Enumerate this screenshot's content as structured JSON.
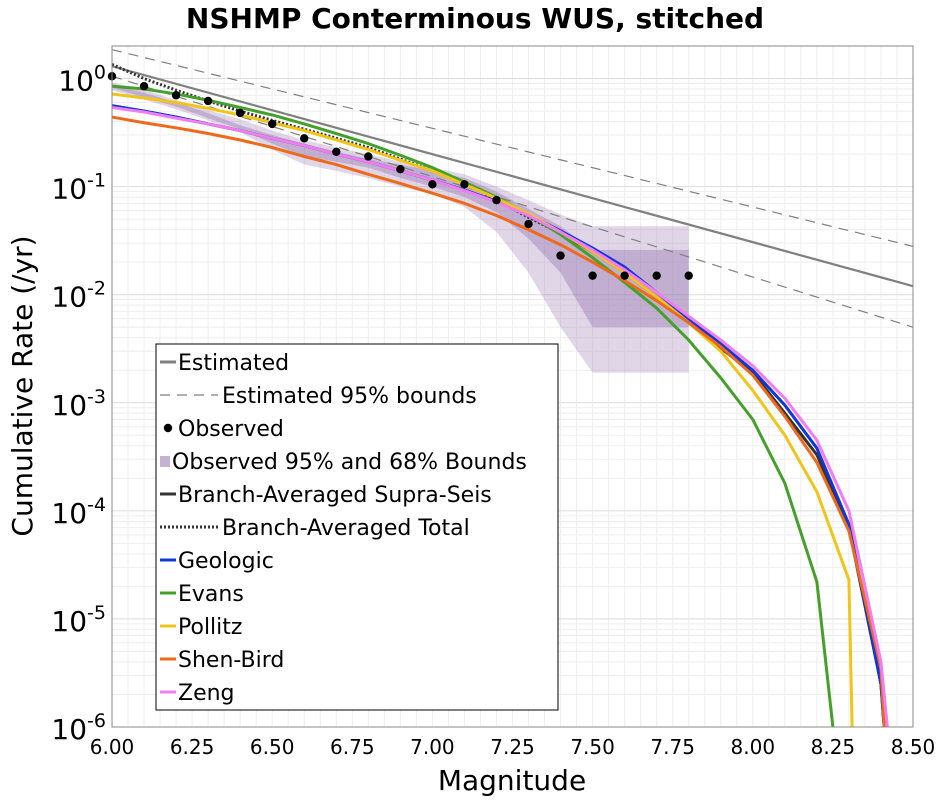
{
  "chart_data": {
    "type": "line",
    "title": "NSHMP Conterminous WUS, stitched",
    "xlabel": "Magnitude",
    "ylabel": "Cumulative Rate (/yr)",
    "xlim": [
      6.0,
      8.5
    ],
    "ylim": [
      1e-06,
      2
    ],
    "yscale": "log",
    "grid": true,
    "legend_position": "lower-left",
    "x_ticks": [
      "6.00",
      "6.25",
      "6.50",
      "6.75",
      "7.00",
      "7.25",
      "7.50",
      "7.75",
      "8.00",
      "8.25",
      "8.50"
    ],
    "y_ticks": [
      {
        "base": "10",
        "exp": "0",
        "value": 1
      },
      {
        "base": "10",
        "exp": "-1",
        "value": 0.1
      },
      {
        "base": "10",
        "exp": "-2",
        "value": 0.01
      },
      {
        "base": "10",
        "exp": "-3",
        "value": 0.001
      },
      {
        "base": "10",
        "exp": "-4",
        "value": 0.0001
      },
      {
        "base": "10",
        "exp": "-5",
        "value": 1e-05
      },
      {
        "base": "10",
        "exp": "-6",
        "value": 1e-06
      }
    ],
    "bounds": {
      "name": "Observed 95% and 68% Bounds",
      "color": "#9e7fb3",
      "outer_upper": [
        [
          6.0,
          0.92
        ],
        [
          6.1,
          0.79
        ],
        [
          6.2,
          0.63
        ],
        [
          6.3,
          0.51
        ],
        [
          6.4,
          0.42
        ],
        [
          6.5,
          0.33
        ],
        [
          6.6,
          0.27
        ],
        [
          6.7,
          0.23
        ],
        [
          6.8,
          0.2
        ],
        [
          6.9,
          0.17
        ],
        [
          7.0,
          0.15
        ],
        [
          7.1,
          0.13
        ],
        [
          7.2,
          0.1
        ],
        [
          7.3,
          0.075
        ],
        [
          7.4,
          0.055
        ],
        [
          7.5,
          0.043
        ],
        [
          7.6,
          0.043
        ],
        [
          7.7,
          0.043
        ],
        [
          7.8,
          0.043
        ]
      ],
      "outer_lower": [
        [
          6.0,
          0.78
        ],
        [
          6.1,
          0.64
        ],
        [
          6.2,
          0.52
        ],
        [
          6.3,
          0.41
        ],
        [
          6.4,
          0.32
        ],
        [
          6.5,
          0.22
        ],
        [
          6.6,
          0.16
        ],
        [
          6.7,
          0.14
        ],
        [
          6.8,
          0.12
        ],
        [
          6.9,
          0.1
        ],
        [
          7.0,
          0.085
        ],
        [
          7.1,
          0.065
        ],
        [
          7.2,
          0.038
        ],
        [
          7.3,
          0.016
        ],
        [
          7.4,
          0.005
        ],
        [
          7.5,
          0.0019
        ],
        [
          7.6,
          0.0019
        ],
        [
          7.7,
          0.0019
        ],
        [
          7.8,
          0.0019
        ]
      ],
      "inner_upper": [
        [
          6.0,
          0.88
        ],
        [
          6.1,
          0.74
        ],
        [
          6.2,
          0.6
        ],
        [
          6.3,
          0.48
        ],
        [
          6.4,
          0.37
        ],
        [
          6.5,
          0.3
        ],
        [
          6.6,
          0.25
        ],
        [
          6.7,
          0.21
        ],
        [
          6.8,
          0.18
        ],
        [
          6.9,
          0.16
        ],
        [
          7.0,
          0.14
        ],
        [
          7.1,
          0.12
        ],
        [
          7.2,
          0.09
        ],
        [
          7.3,
          0.062
        ],
        [
          7.4,
          0.043
        ],
        [
          7.5,
          0.026
        ],
        [
          7.6,
          0.026
        ],
        [
          7.7,
          0.026
        ],
        [
          7.8,
          0.026
        ]
      ],
      "inner_lower": [
        [
          6.0,
          0.82
        ],
        [
          6.1,
          0.67
        ],
        [
          6.2,
          0.55
        ],
        [
          6.3,
          0.43
        ],
        [
          6.4,
          0.34
        ],
        [
          6.5,
          0.25
        ],
        [
          6.6,
          0.19
        ],
        [
          6.7,
          0.17
        ],
        [
          6.8,
          0.15
        ],
        [
          6.9,
          0.12
        ],
        [
          7.0,
          0.1
        ],
        [
          7.1,
          0.08
        ],
        [
          7.2,
          0.058
        ],
        [
          7.3,
          0.033
        ],
        [
          7.4,
          0.016
        ],
        [
          7.5,
          0.005
        ],
        [
          7.6,
          0.005
        ],
        [
          7.7,
          0.005
        ],
        [
          7.8,
          0.005
        ]
      ]
    },
    "series": [
      {
        "name": "Estimated",
        "color": "#808080",
        "style": "solid",
        "width": 2.2,
        "points": [
          [
            6.0,
            1.3
          ],
          [
            8.5,
            0.012
          ]
        ]
      },
      {
        "name": "Estimated 95% bounds",
        "color": "#808080",
        "style": "dashed",
        "width": 1.2,
        "points": [
          [
            6.0,
            1.85
          ],
          [
            8.5,
            0.028
          ]
        ]
      },
      {
        "name": "",
        "color": "#808080",
        "style": "dashed",
        "width": 1.2,
        "points": [
          [
            6.0,
            1.05
          ],
          [
            8.5,
            0.005
          ]
        ]
      },
      {
        "name": "Branch-Averaged Supra-Seis",
        "color": "#333333",
        "style": "solid",
        "width": 3,
        "points": [
          [
            6.0,
            0.56
          ],
          [
            6.1,
            0.5
          ],
          [
            6.2,
            0.44
          ],
          [
            6.3,
            0.38
          ],
          [
            6.4,
            0.33
          ],
          [
            6.5,
            0.28
          ],
          [
            6.6,
            0.24
          ],
          [
            6.7,
            0.2
          ],
          [
            6.8,
            0.17
          ],
          [
            6.9,
            0.14
          ],
          [
            7.0,
            0.115
          ],
          [
            7.1,
            0.093
          ],
          [
            7.2,
            0.073
          ],
          [
            7.3,
            0.054
          ],
          [
            7.4,
            0.037
          ],
          [
            7.5,
            0.025
          ],
          [
            7.6,
            0.016
          ],
          [
            7.7,
            0.0095
          ],
          [
            7.8,
            0.0055
          ],
          [
            7.9,
            0.0032
          ],
          [
            8.0,
            0.0019
          ],
          [
            8.1,
            0.0008
          ],
          [
            8.2,
            0.00033
          ],
          [
            8.3,
            7e-05
          ],
          [
            8.4,
            2.5e-06
          ],
          [
            8.41,
            1e-06
          ]
        ]
      },
      {
        "name": "Branch-Averaged Total",
        "color": "#333333",
        "style": "dotted",
        "width": 3,
        "points": [
          [
            6.0,
            1.35
          ],
          [
            6.1,
            1.0
          ],
          [
            6.2,
            0.78
          ],
          [
            6.3,
            0.62
          ],
          [
            6.4,
            0.5
          ],
          [
            6.5,
            0.41
          ],
          [
            6.6,
            0.34
          ],
          [
            6.7,
            0.28
          ],
          [
            6.8,
            0.23
          ],
          [
            6.9,
            0.18
          ],
          [
            7.0,
            0.14
          ],
          [
            7.1,
            0.11
          ],
          [
            7.2,
            0.075
          ],
          [
            7.3,
            0.052
          ],
          [
            7.4,
            0.037
          ],
          [
            7.5,
            0.025
          ],
          [
            7.6,
            0.017
          ]
        ]
      },
      {
        "name": "Geologic",
        "color": "#1136d9",
        "style": "solid",
        "width": 3,
        "points": [
          [
            6.0,
            0.56
          ],
          [
            6.1,
            0.5
          ],
          [
            6.2,
            0.44
          ],
          [
            6.3,
            0.38
          ],
          [
            6.4,
            0.33
          ],
          [
            6.5,
            0.28
          ],
          [
            6.6,
            0.24
          ],
          [
            6.7,
            0.2
          ],
          [
            6.8,
            0.17
          ],
          [
            6.9,
            0.14
          ],
          [
            7.0,
            0.115
          ],
          [
            7.1,
            0.093
          ],
          [
            7.2,
            0.073
          ],
          [
            7.3,
            0.055
          ],
          [
            7.4,
            0.039
          ],
          [
            7.5,
            0.027
          ],
          [
            7.6,
            0.018
          ],
          [
            7.7,
            0.0105
          ],
          [
            7.8,
            0.006
          ],
          [
            7.9,
            0.0035
          ],
          [
            8.0,
            0.002
          ],
          [
            8.1,
            0.00095
          ],
          [
            8.2,
            0.00038
          ],
          [
            8.3,
            7.5e-05
          ],
          [
            8.4,
            2.5e-06
          ],
          [
            8.41,
            1e-06
          ]
        ]
      },
      {
        "name": "Evans",
        "color": "#44a02b",
        "style": "solid",
        "width": 3,
        "points": [
          [
            6.0,
            0.85
          ],
          [
            6.1,
            0.8
          ],
          [
            6.2,
            0.72
          ],
          [
            6.3,
            0.63
          ],
          [
            6.4,
            0.54
          ],
          [
            6.5,
            0.46
          ],
          [
            6.6,
            0.38
          ],
          [
            6.7,
            0.31
          ],
          [
            6.8,
            0.25
          ],
          [
            6.9,
            0.195
          ],
          [
            7.0,
            0.15
          ],
          [
            7.1,
            0.11
          ],
          [
            7.2,
            0.08
          ],
          [
            7.3,
            0.055
          ],
          [
            7.4,
            0.036
          ],
          [
            7.5,
            0.022
          ],
          [
            7.6,
            0.013
          ],
          [
            7.7,
            0.0075
          ],
          [
            7.8,
            0.0038
          ],
          [
            7.9,
            0.0017
          ],
          [
            8.0,
            0.0007
          ],
          [
            8.1,
            0.00018
          ],
          [
            8.2,
            2.2e-05
          ],
          [
            8.25,
            1e-06
          ]
        ]
      },
      {
        "name": "Pollitz",
        "color": "#f0c419",
        "style": "solid",
        "width": 3,
        "points": [
          [
            6.0,
            0.72
          ],
          [
            6.1,
            0.66
          ],
          [
            6.2,
            0.6
          ],
          [
            6.3,
            0.53
          ],
          [
            6.4,
            0.46
          ],
          [
            6.5,
            0.39
          ],
          [
            6.6,
            0.33
          ],
          [
            6.7,
            0.27
          ],
          [
            6.8,
            0.22
          ],
          [
            6.9,
            0.175
          ],
          [
            7.0,
            0.14
          ],
          [
            7.1,
            0.105
          ],
          [
            7.2,
            0.078
          ],
          [
            7.3,
            0.056
          ],
          [
            7.4,
            0.038
          ],
          [
            7.5,
            0.025
          ],
          [
            7.6,
            0.016
          ],
          [
            7.7,
            0.0095
          ],
          [
            7.8,
            0.0055
          ],
          [
            7.9,
            0.003
          ],
          [
            8.0,
            0.0013
          ],
          [
            8.1,
            0.0005
          ],
          [
            8.2,
            0.00015
          ],
          [
            8.3,
            2.3e-05
          ],
          [
            8.31,
            1e-06
          ]
        ]
      },
      {
        "name": "Shen-Bird",
        "color": "#ee6a1a",
        "style": "solid",
        "width": 3,
        "points": [
          [
            6.0,
            0.44
          ],
          [
            6.1,
            0.39
          ],
          [
            6.2,
            0.35
          ],
          [
            6.3,
            0.31
          ],
          [
            6.4,
            0.27
          ],
          [
            6.5,
            0.23
          ],
          [
            6.6,
            0.19
          ],
          [
            6.7,
            0.16
          ],
          [
            6.8,
            0.13
          ],
          [
            6.9,
            0.107
          ],
          [
            7.0,
            0.087
          ],
          [
            7.1,
            0.07
          ],
          [
            7.2,
            0.054
          ],
          [
            7.3,
            0.04
          ],
          [
            7.4,
            0.029
          ],
          [
            7.5,
            0.02
          ],
          [
            7.6,
            0.0135
          ],
          [
            7.7,
            0.0088
          ],
          [
            7.8,
            0.0055
          ],
          [
            7.9,
            0.0033
          ],
          [
            8.0,
            0.0018
          ],
          [
            8.1,
            0.00075
          ],
          [
            8.2,
            0.00028
          ],
          [
            8.3,
            6.5e-05
          ],
          [
            8.4,
            3.5e-06
          ],
          [
            8.41,
            1e-06
          ]
        ]
      },
      {
        "name": "Zeng",
        "color": "#f07ef0",
        "style": "solid",
        "width": 3,
        "points": [
          [
            6.0,
            0.54
          ],
          [
            6.1,
            0.49
          ],
          [
            6.2,
            0.43
          ],
          [
            6.3,
            0.38
          ],
          [
            6.4,
            0.33
          ],
          [
            6.5,
            0.28
          ],
          [
            6.6,
            0.24
          ],
          [
            6.7,
            0.2
          ],
          [
            6.8,
            0.17
          ],
          [
            6.9,
            0.14
          ],
          [
            7.0,
            0.115
          ],
          [
            7.1,
            0.092
          ],
          [
            7.2,
            0.072
          ],
          [
            7.3,
            0.054
          ],
          [
            7.4,
            0.038
          ],
          [
            7.5,
            0.026
          ],
          [
            7.6,
            0.017
          ],
          [
            7.7,
            0.0105
          ],
          [
            7.8,
            0.0063
          ],
          [
            7.9,
            0.0038
          ],
          [
            8.0,
            0.0022
          ],
          [
            8.1,
            0.0011
          ],
          [
            8.2,
            0.00045
          ],
          [
            8.3,
            0.0001
          ],
          [
            8.4,
            4e-06
          ],
          [
            8.42,
            1e-06
          ]
        ]
      }
    ],
    "observed": {
      "name": "Observed",
      "color": "#000000",
      "points": [
        [
          6.0,
          1.05
        ],
        [
          6.1,
          0.85
        ],
        [
          6.2,
          0.7
        ],
        [
          6.3,
          0.62
        ],
        [
          6.4,
          0.48
        ],
        [
          6.5,
          0.38
        ],
        [
          6.6,
          0.28
        ],
        [
          6.7,
          0.21
        ],
        [
          6.8,
          0.19
        ],
        [
          6.9,
          0.145
        ],
        [
          7.0,
          0.105
        ],
        [
          7.1,
          0.105
        ],
        [
          7.2,
          0.075
        ],
        [
          7.3,
          0.045
        ],
        [
          7.4,
          0.023
        ],
        [
          7.5,
          0.015
        ],
        [
          7.6,
          0.015
        ],
        [
          7.7,
          0.015
        ],
        [
          7.8,
          0.015
        ]
      ]
    },
    "legend": [
      {
        "label": "Estimated",
        "kind": "line",
        "color": "#808080",
        "style": "solid"
      },
      {
        "label": "Estimated 95% bounds",
        "kind": "line",
        "color": "#808080",
        "style": "dashed"
      },
      {
        "label": "Observed",
        "kind": "dot",
        "color": "#000000"
      },
      {
        "label": "Observed 95% and 68% Bounds",
        "kind": "band",
        "color": "#9e7fb3"
      },
      {
        "label": "Branch-Averaged Supra-Seis",
        "kind": "line",
        "color": "#333333",
        "style": "solid"
      },
      {
        "label": "Branch-Averaged Total",
        "kind": "line",
        "color": "#333333",
        "style": "dotted"
      },
      {
        "label": "Geologic",
        "kind": "line",
        "color": "#1136d9",
        "style": "solid"
      },
      {
        "label": "Evans",
        "kind": "line",
        "color": "#44a02b",
        "style": "solid"
      },
      {
        "label": "Pollitz",
        "kind": "line",
        "color": "#f0c419",
        "style": "solid"
      },
      {
        "label": "Shen-Bird",
        "kind": "line",
        "color": "#ee6a1a",
        "style": "solid"
      },
      {
        "label": "Zeng",
        "kind": "line",
        "color": "#f07ef0",
        "style": "solid"
      }
    ]
  }
}
